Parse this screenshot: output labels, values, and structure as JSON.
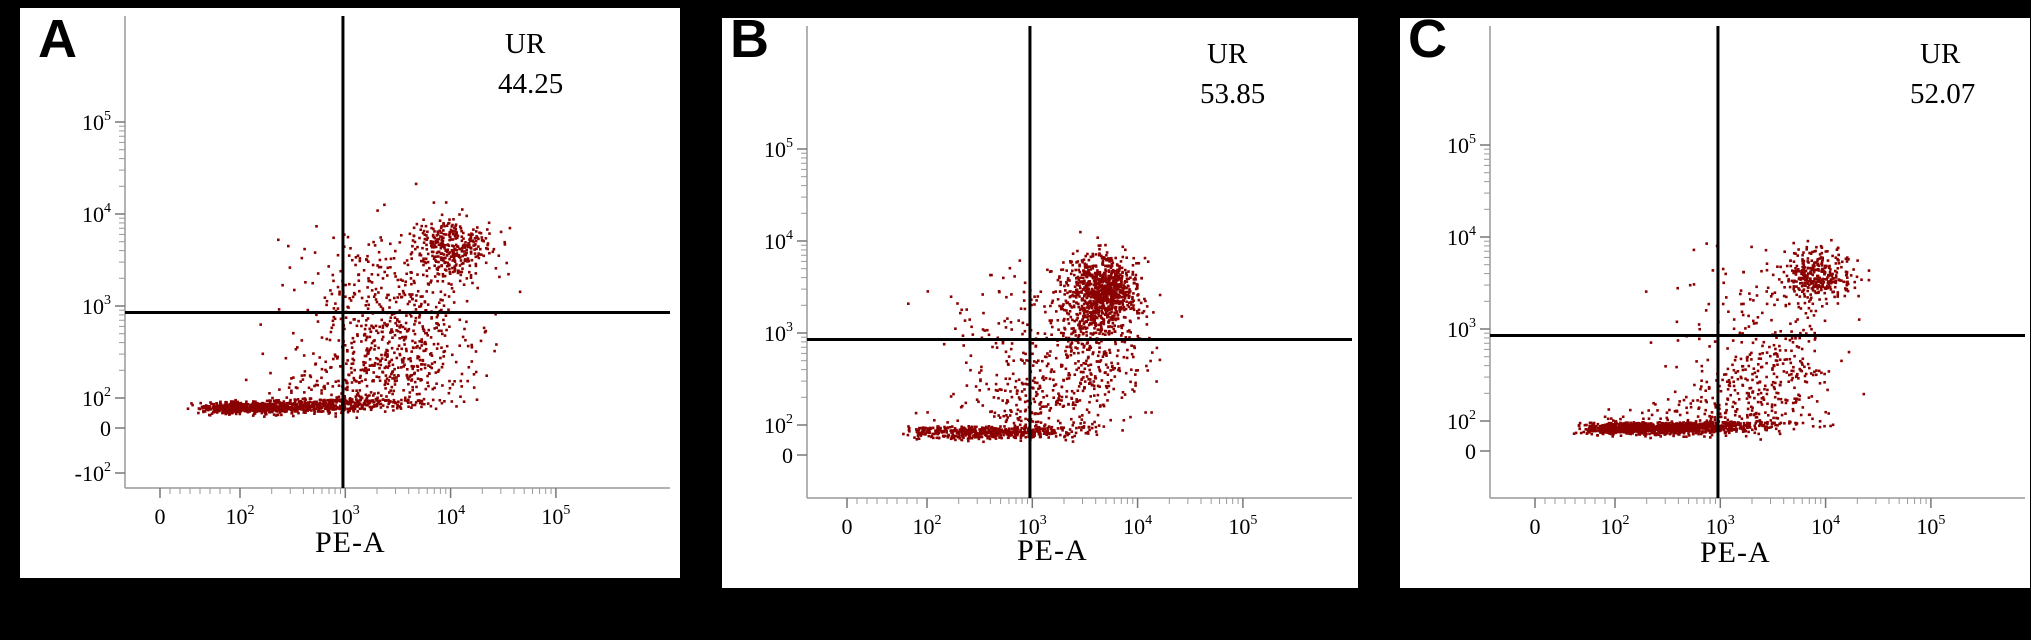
{
  "chart_data": [
    {
      "type": "scatter",
      "panel": "A",
      "xlabel": "PE-A",
      "ylabel": "",
      "quadrant_label": "UR",
      "quadrant_value": "44.25",
      "x_ticks": [
        "0",
        "10^2",
        "10^3",
        "10^4",
        "10^5"
      ],
      "y_ticks": [
        "-10^2",
        "0",
        "10^2",
        "10^3",
        "10^4",
        "10^5"
      ],
      "gate": {
        "x": 950,
        "y": 850
      },
      "point_color": "#8b0000",
      "clusters": [
        {
          "x_log": 2.1,
          "y_log": 1.45,
          "sx": 0.45,
          "sy": 0.18,
          "n": 900
        },
        {
          "x_log": 3.0,
          "y_log": 1.9,
          "sx": 0.35,
          "sy": 0.35,
          "n": 400
        },
        {
          "x_log": 3.55,
          "y_log": 2.6,
          "sx": 0.35,
          "sy": 0.4,
          "n": 500
        },
        {
          "x_log": 4.0,
          "y_log": 3.65,
          "sx": 0.18,
          "sy": 0.15,
          "n": 350
        },
        {
          "x_log": 3.3,
          "y_log": 3.3,
          "sx": 0.4,
          "sy": 0.35,
          "n": 150
        }
      ]
    },
    {
      "type": "scatter",
      "panel": "B",
      "xlabel": "PE-A",
      "ylabel": "",
      "quadrant_label": "UR",
      "quadrant_value": "53.85",
      "x_ticks": [
        "0",
        "10^2",
        "10^3",
        "10^4",
        "10^5"
      ],
      "y_ticks": [
        "0",
        "10^2",
        "10^3",
        "10^4",
        "10^5"
      ],
      "gate": {
        "x": 950,
        "y": 850
      },
      "point_color": "#8b0000",
      "clusters": [
        {
          "x_log": 2.5,
          "y_log": 1.6,
          "sx": 0.4,
          "sy": 0.22,
          "n": 500
        },
        {
          "x_log": 3.0,
          "y_log": 2.2,
          "sx": 0.3,
          "sy": 0.4,
          "n": 300
        },
        {
          "x_log": 3.65,
          "y_log": 3.45,
          "sx": 0.17,
          "sy": 0.2,
          "n": 900
        },
        {
          "x_log": 3.55,
          "y_log": 2.8,
          "sx": 0.25,
          "sy": 0.35,
          "n": 300
        },
        {
          "x_log": 2.8,
          "y_log": 3.2,
          "sx": 0.35,
          "sy": 0.3,
          "n": 100
        }
      ]
    },
    {
      "type": "scatter",
      "panel": "C",
      "xlabel": "PE-A",
      "ylabel": "",
      "quadrant_label": "UR",
      "quadrant_value": "52.07",
      "x_ticks": [
        "0",
        "10^2",
        "10^3",
        "10^4",
        "10^5"
      ],
      "y_ticks": [
        "0",
        "10^2",
        "10^3",
        "10^4",
        "10^5"
      ],
      "gate": {
        "x": 950,
        "y": 850
      },
      "point_color": "#8b0000",
      "clusters": [
        {
          "x_log": 2.3,
          "y_log": 1.6,
          "sx": 0.42,
          "sy": 0.2,
          "n": 1100
        },
        {
          "x_log": 3.0,
          "y_log": 1.95,
          "sx": 0.3,
          "sy": 0.3,
          "n": 300
        },
        {
          "x_log": 3.5,
          "y_log": 2.4,
          "sx": 0.3,
          "sy": 0.35,
          "n": 250
        },
        {
          "x_log": 3.9,
          "y_log": 3.6,
          "sx": 0.18,
          "sy": 0.15,
          "n": 350
        },
        {
          "x_log": 3.2,
          "y_log": 3.2,
          "sx": 0.35,
          "sy": 0.3,
          "n": 80
        }
      ]
    }
  ],
  "panels": [
    {
      "letter": "A"
    },
    {
      "letter": "B"
    },
    {
      "letter": "C"
    }
  ]
}
